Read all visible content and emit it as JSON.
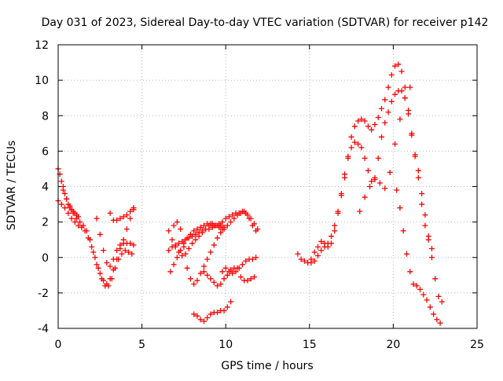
{
  "chart_data": {
    "type": "scatter",
    "title": "Day 031 of 2023, Sidereal Day-to-day VTEC variation (SDTVAR) for receiver p142",
    "xlabel": "GPS time / hours",
    "ylabel": "SDTVAR / TECUs",
    "xlim": [
      0,
      25
    ],
    "ylim": [
      -4,
      12
    ],
    "xticks": [
      "0",
      "5",
      "10",
      "15",
      "20",
      "25"
    ],
    "yticks": [
      "-4",
      "-2",
      "0",
      "2",
      "4",
      "6",
      "8",
      "10",
      "12"
    ],
    "grid": true,
    "marker": "plus",
    "color": "#ff0000",
    "series": [
      {
        "x": [
          0.0,
          0.1,
          0.2,
          0.3,
          0.4,
          0.5,
          0.6,
          0.7,
          0.8,
          0.9,
          1.0,
          1.1,
          1.2
        ],
        "y": [
          5.0,
          4.7,
          4.3,
          4.0,
          3.6,
          3.3,
          3.0,
          2.8,
          2.7,
          2.6,
          2.5,
          2.4,
          2.3
        ]
      },
      {
        "x": [
          0.0,
          0.2,
          0.4,
          0.6,
          0.8,
          1.0,
          1.2,
          1.4,
          1.6,
          1.8,
          2.0,
          2.2,
          2.4,
          2.6,
          2.8,
          3.0,
          3.2,
          3.4,
          3.6,
          3.8,
          4.0,
          4.2,
          4.4
        ],
        "y": [
          3.2,
          3.0,
          2.8,
          2.5,
          2.2,
          2.0,
          1.8,
          1.7,
          1.5,
          1.1,
          0.6,
          0.0,
          -0.6,
          -1.2,
          -1.6,
          -1.6,
          -1.2,
          -0.6,
          -0.1,
          0.2,
          0.4,
          0.3,
          0.2
        ]
      },
      {
        "x": [
          0.3,
          0.5,
          0.7,
          0.9,
          1.1,
          1.3,
          1.5,
          1.7,
          1.9,
          2.1,
          2.3,
          2.5,
          2.7,
          2.9,
          3.1,
          3.3,
          3.5,
          3.7,
          3.9,
          4.1,
          4.3,
          4.5
        ],
        "y": [
          3.8,
          3.3,
          2.9,
          2.5,
          2.2,
          2.0,
          1.8,
          1.5,
          1.0,
          0.3,
          -0.4,
          -0.9,
          -1.3,
          -1.5,
          -1.2,
          -0.7,
          -0.1,
          0.5,
          1.0,
          1.6,
          2.2,
          2.7
        ]
      },
      {
        "x": [
          2.3,
          2.5,
          2.7,
          2.9,
          3.1,
          3.3,
          3.5,
          3.7,
          3.9,
          4.1,
          4.3,
          4.5
        ],
        "y": [
          2.2,
          1.3,
          0.4,
          -0.3,
          -0.5,
          -0.1,
          0.4,
          0.7,
          0.8,
          0.8,
          0.8,
          0.7
        ]
      },
      {
        "x": [
          3.1,
          3.3,
          3.5,
          3.7,
          3.9,
          4.1,
          4.3,
          4.5
        ],
        "y": [
          2.5,
          2.1,
          2.1,
          2.2,
          2.3,
          2.4,
          2.6,
          2.8
        ]
      },
      {
        "x": [
          6.6,
          6.8,
          7.0,
          7.2,
          7.4,
          7.6,
          7.8,
          8.0,
          8.2,
          8.4,
          8.6,
          8.8,
          9.0,
          9.2,
          9.4,
          9.6,
          9.8,
          10.0,
          10.2,
          10.4,
          10.6,
          10.8,
          11.0,
          11.2,
          11.4,
          11.6,
          11.8
        ],
        "y": [
          0.4,
          0.6,
          0.7,
          0.8,
          0.9,
          1.0,
          1.1,
          1.2,
          1.3,
          1.4,
          1.5,
          1.6,
          1.6,
          1.7,
          1.8,
          1.9,
          2.0,
          2.2,
          2.3,
          2.4,
          2.5,
          2.5,
          2.6,
          2.5,
          2.2,
          1.8,
          1.5
        ]
      },
      {
        "x": [
          6.6,
          6.8,
          7.0,
          7.2,
          7.4,
          7.6,
          7.8,
          8.0,
          8.2,
          8.4,
          8.6,
          8.8,
          9.0,
          9.2,
          9.4,
          9.6,
          9.8
        ],
        "y": [
          1.5,
          1.0,
          0.6,
          0.3,
          0.1,
          0.2,
          0.5,
          0.8,
          1.0,
          1.2,
          1.4,
          1.6,
          1.8,
          1.9,
          1.8,
          1.7,
          1.6
        ]
      },
      {
        "x": [
          6.7,
          6.9,
          7.1,
          7.3,
          7.5,
          7.7,
          7.9,
          8.1,
          8.3,
          8.5,
          8.7,
          8.9,
          9.1,
          9.3,
          9.5,
          9.7,
          9.9
        ],
        "y": [
          -0.8,
          -0.4,
          0.0,
          0.4,
          0.8,
          1.1,
          1.3,
          1.5,
          1.6,
          1.7,
          1.8,
          1.9,
          1.9,
          1.8,
          1.8,
          1.8,
          1.7
        ]
      },
      {
        "x": [
          6.9,
          7.1,
          7.3,
          7.5,
          7.7,
          7.9,
          8.1,
          8.3,
          8.5,
          8.7,
          8.9,
          9.1,
          9.3,
          9.5,
          9.7,
          9.9,
          10.1,
          10.3,
          10.5,
          10.7,
          10.9,
          11.1,
          11.3,
          11.5,
          11.7,
          11.9
        ],
        "y": [
          1.8,
          2.0,
          1.6,
          0.6,
          -0.6,
          -1.2,
          -1.5,
          -1.3,
          -0.9,
          -0.5,
          -0.1,
          0.3,
          0.7,
          1.1,
          1.4,
          1.6,
          1.8,
          2.0,
          2.2,
          2.4,
          2.5,
          2.6,
          2.4,
          2.2,
          1.9,
          1.6
        ]
      },
      {
        "x": [
          8.1,
          8.3,
          8.5,
          8.7,
          8.9,
          9.1,
          9.3,
          9.5,
          9.7,
          9.9,
          10.1,
          10.3
        ],
        "y": [
          -3.2,
          -3.3,
          -3.5,
          -3.6,
          -3.4,
          -3.2,
          -3.1,
          -3.1,
          -3.0,
          -3.0,
          -2.8,
          -2.5
        ]
      },
      {
        "x": [
          8.7,
          8.9,
          9.1,
          9.3,
          9.5,
          9.7,
          9.9,
          10.1,
          10.3,
          10.5,
          10.7,
          10.9,
          11.1,
          11.3,
          11.5,
          11.7
        ],
        "y": [
          -0.8,
          -1.0,
          -1.2,
          -1.4,
          -1.6,
          -1.5,
          -1.2,
          -1.0,
          -0.7,
          -0.6,
          -0.6,
          -1.1,
          -1.3,
          -1.3,
          -1.2,
          -1.1
        ]
      },
      {
        "x": [
          9.8,
          10.0,
          10.2,
          10.4,
          10.6,
          10.8,
          11.0,
          11.2,
          11.4,
          11.6,
          11.8
        ],
        "y": [
          -0.8,
          -0.6,
          -0.8,
          -0.9,
          -0.8,
          -0.6,
          -0.4,
          -0.2,
          -0.1,
          -0.1,
          0.0
        ]
      },
      {
        "x": [
          14.3,
          14.5,
          14.7,
          14.9,
          15.1,
          15.3,
          15.5,
          15.7,
          15.9,
          16.1,
          16.3,
          16.5,
          16.7,
          16.9,
          17.1,
          17.3,
          17.5,
          17.7,
          17.9,
          18.1,
          18.3,
          18.5,
          18.7,
          18.9,
          19.1,
          19.3,
          19.5,
          19.7,
          19.9,
          20.1,
          20.3,
          20.5,
          20.7,
          20.9,
          21.1,
          21.3,
          21.5,
          21.7,
          21.9,
          22.1,
          22.3,
          22.5,
          22.7,
          22.9
        ],
        "y": [
          0.2,
          -0.1,
          -0.2,
          -0.3,
          -0.3,
          -0.2,
          0.1,
          0.4,
          0.6,
          0.8,
          1.2,
          1.8,
          2.6,
          3.6,
          4.7,
          5.6,
          6.2,
          6.5,
          6.4,
          6.2,
          5.6,
          4.9,
          4.3,
          4.5,
          5.6,
          6.8,
          7.6,
          8.2,
          8.8,
          9.2,
          9.4,
          9.4,
          9.0,
          8.1,
          6.9,
          5.8,
          4.9,
          3.6,
          2.4,
          1.2,
          0.0,
          -1.2,
          -2.2,
          -2.5
        ]
      },
      {
        "x": [
          15.1,
          15.3,
          15.5,
          15.7,
          15.9,
          16.1,
          16.3,
          16.5,
          16.7,
          16.9,
          17.1,
          17.3,
          17.5,
          17.7,
          17.9,
          18.1,
          18.3,
          18.5,
          18.7,
          18.9,
          19.1,
          19.3,
          19.5,
          19.7,
          19.9,
          20.1,
          20.3,
          20.5,
          20.7,
          20.9,
          21.1,
          21.3,
          21.5,
          21.7,
          21.9,
          22.1,
          22.3
        ],
        "y": [
          -0.1,
          0.3,
          0.6,
          0.9,
          0.8,
          0.6,
          0.8,
          1.5,
          2.5,
          3.5,
          4.5,
          5.7,
          6.8,
          7.4,
          7.7,
          7.8,
          7.7,
          7.4,
          7.2,
          7.5,
          7.9,
          8.4,
          8.9,
          9.6,
          10.3,
          10.8,
          10.9,
          10.5,
          9.6,
          8.3,
          7.0,
          5.7,
          4.5,
          3.0,
          1.8,
          1.0,
          0.5
        ]
      },
      {
        "x": [
          18.0,
          18.3,
          18.6,
          18.9,
          19.2,
          19.5,
          19.8,
          20.1,
          20.4,
          20.7,
          21.0
        ],
        "y": [
          2.6,
          3.4,
          4.0,
          4.4,
          4.2,
          3.9,
          4.8,
          6.4,
          7.8,
          9.0,
          9.6
        ]
      },
      {
        "x": [
          20.2,
          20.4,
          20.6,
          20.8,
          21.0,
          21.2,
          21.4,
          21.6,
          21.8,
          22.0,
          22.2,
          22.4,
          22.6,
          22.8
        ],
        "y": [
          3.8,
          2.8,
          1.5,
          0.2,
          -0.8,
          -1.5,
          -1.6,
          -1.8,
          -2.1,
          -2.4,
          -2.8,
          -3.2,
          -3.5,
          -3.7
        ]
      }
    ]
  }
}
